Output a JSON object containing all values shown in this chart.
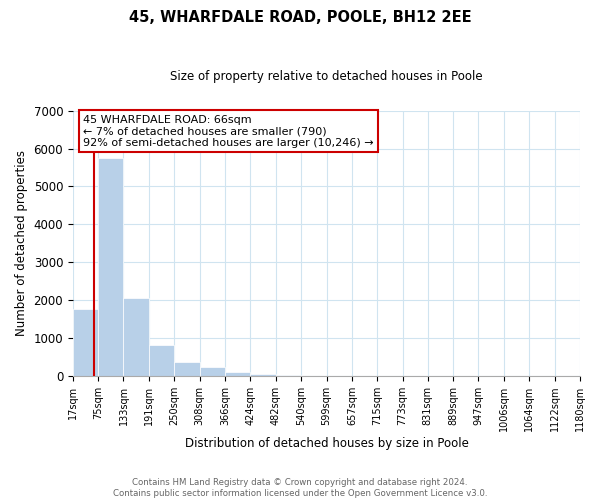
{
  "title": "45, WHARFDALE ROAD, POOLE, BH12 2EE",
  "subtitle": "Size of property relative to detached houses in Poole",
  "xlabel": "Distribution of detached houses by size in Poole",
  "ylabel": "Number of detached properties",
  "bar_color": "#b8d0e8",
  "highlight_line_color": "#cc0000",
  "bin_labels": [
    "17sqm",
    "75sqm",
    "133sqm",
    "191sqm",
    "250sqm",
    "308sqm",
    "366sqm",
    "424sqm",
    "482sqm",
    "540sqm",
    "599sqm",
    "657sqm",
    "715sqm",
    "773sqm",
    "831sqm",
    "889sqm",
    "947sqm",
    "1006sqm",
    "1064sqm",
    "1122sqm",
    "1180sqm"
  ],
  "bar_values": [
    1780,
    5750,
    2060,
    830,
    370,
    230,
    110,
    60,
    30,
    10,
    5,
    0,
    0,
    0,
    0,
    0,
    0,
    0,
    0,
    0
  ],
  "ylim": [
    0,
    7000
  ],
  "yticks": [
    0,
    1000,
    2000,
    3000,
    4000,
    5000,
    6000,
    7000
  ],
  "property_line_x": 66,
  "annotation_line0": "45 WHARFDALE ROAD: 66sqm",
  "annotation_line1": "← 7% of detached houses are smaller (790)",
  "annotation_line2": "92% of semi-detached houses are larger (10,246) →",
  "annotation_box_color": "#ffffff",
  "annotation_border_color": "#cc0000",
  "footer_line1": "Contains HM Land Registry data © Crown copyright and database right 2024.",
  "footer_line2": "Contains public sector information licensed under the Open Government Licence v3.0.",
  "bin_edges": [
    17,
    75,
    133,
    191,
    250,
    308,
    366,
    424,
    482,
    540,
    599,
    657,
    715,
    773,
    831,
    889,
    947,
    1006,
    1064,
    1122,
    1180
  ],
  "grid_color": "#d0e4f0"
}
